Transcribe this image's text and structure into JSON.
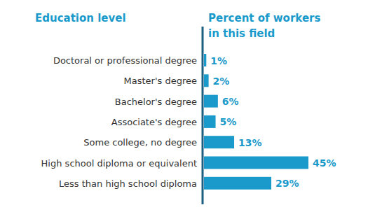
{
  "chart_data": {
    "type": "bar",
    "orientation": "horizontal",
    "y_label": "Education level",
    "x_label": "Percent of workers in this field",
    "categories": [
      "Doctoral or professional degree",
      "Master's degree",
      "Bachelor's degree",
      "Associate's degree",
      "Some college, no degree",
      "High school diploma or equivalent",
      "Less than high school diploma"
    ],
    "values": [
      1,
      2,
      6,
      5,
      13,
      45,
      29
    ],
    "value_labels": [
      "1%",
      "2%",
      "6%",
      "5%",
      "13%",
      "45%",
      "29%"
    ],
    "color": "#1a9acb",
    "xlim": [
      0,
      45
    ],
    "data_labels": true,
    "tick_labels": "y",
    "grid": false
  }
}
